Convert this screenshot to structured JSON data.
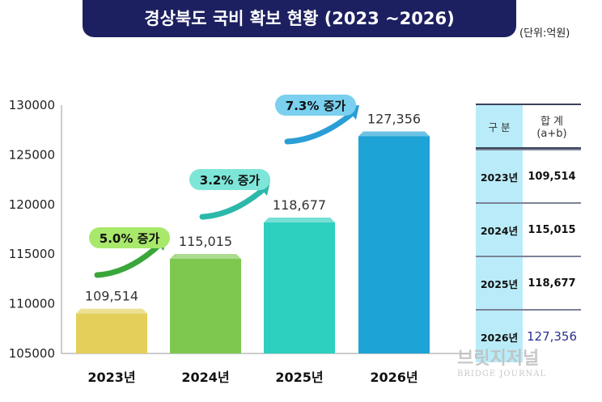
{
  "title": "경상북도 국비 확보 현황 (2023 ~2026)",
  "unit": "(단위:억원)",
  "chart_data": {
    "type": "bar",
    "categories": [
      "2023년",
      "2024년",
      "2025년",
      "2026년"
    ],
    "values": [
      109514,
      115015,
      118677,
      127356
    ],
    "data_labels": [
      "109,514",
      "115,015",
      "118,677",
      "127,356"
    ],
    "ylim": [
      105000,
      130000
    ],
    "yticks": [
      105000,
      110000,
      115000,
      120000,
      125000,
      130000
    ],
    "grid": false,
    "colors": [
      "#e3cf5a",
      "#7ec850",
      "#2dcfbf",
      "#1ea3d6"
    ],
    "annotations": [
      "5.0% 증가",
      "3.2% 증가",
      "7.3% 증가"
    ]
  },
  "table": {
    "header": [
      "구 분",
      "합 계",
      "(a+b)"
    ],
    "rows": [
      {
        "year": "2023년",
        "total": "109,514"
      },
      {
        "year": "2024년",
        "total": "115,015"
      },
      {
        "year": "2025년",
        "total": "118,677"
      },
      {
        "year": "2026년",
        "total": "127,356",
        "highlight": "#2b2f8f"
      }
    ]
  },
  "watermark": {
    "main": "브릿지저널",
    "sub": "BRIDGE JOURNAL"
  }
}
